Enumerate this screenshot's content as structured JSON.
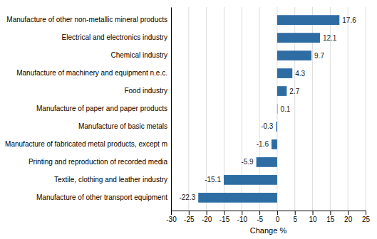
{
  "chart_data": {
    "type": "bar",
    "orientation": "horizontal",
    "categories": [
      "Manufacture of other transport equipment",
      "Textile, clothing and leather industry",
      "Printing and reproduction of recorded media",
      "Manufacture of fabricated metal products, except m",
      "Manufacture of basic metals",
      "Manufacture of paper and paper products",
      "Food industry",
      "Manufacture of machinery and equipment n.e.c.",
      "Chemical industry",
      "Electrical and electronics industry",
      "Manufacture of other non-metallic mineral products"
    ],
    "values": [
      -22.3,
      -15.1,
      -5.9,
      -1.6,
      -0.3,
      0.1,
      2.7,
      4.3,
      9.7,
      12.1,
      17.6
    ],
    "color": "#2E6DA4",
    "xlabel": "Change %",
    "xlim": [
      -30,
      25
    ],
    "xticks": [
      -30,
      -25,
      -20,
      -15,
      -10,
      -5,
      0,
      5,
      10,
      15,
      20,
      25
    ],
    "grid": true,
    "data_labels": true
  }
}
